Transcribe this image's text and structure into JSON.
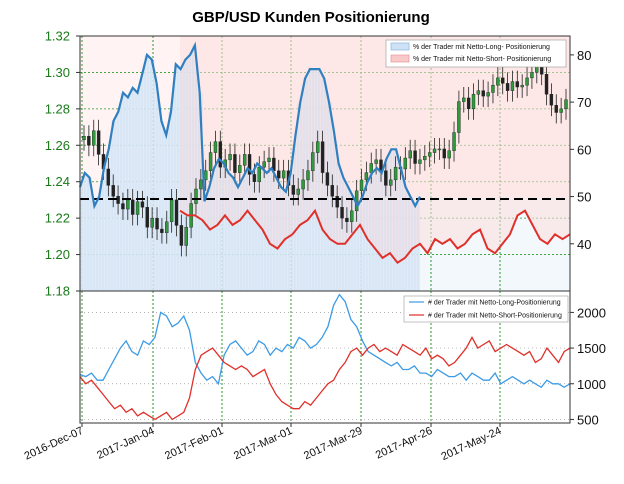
{
  "chart_data": [
    {
      "type": "line",
      "title": "GBP/USD Kunden Positionierung",
      "left_axis": {
        "ticks": [
          "1.18",
          "1.20",
          "1.22",
          "1.24",
          "1.26",
          "1.28",
          "1.30",
          "1.32"
        ],
        "range": [
          1.18,
          1.32
        ],
        "color": "#1a7a1a"
      },
      "right_axis": {
        "ticks": [
          "40",
          "50",
          "60",
          "70",
          "80"
        ],
        "range": [
          30,
          84
        ]
      },
      "reference_line": 50,
      "legend_placement": "top-right",
      "series": [
        {
          "name": "% der Trader mit Netto-Long- Positionierung",
          "color": "#2f7fc1",
          "fill": "#dce9f7",
          "values": [
            52,
            55,
            54,
            48,
            50,
            56,
            60,
            66,
            68,
            72,
            71,
            73,
            72,
            76,
            80,
            79,
            74,
            66,
            63,
            68,
            78,
            77,
            79,
            80,
            82,
            72,
            49,
            52,
            56,
            58,
            57,
            55,
            54,
            52,
            54,
            56,
            55,
            57,
            56,
            55,
            56,
            54,
            52,
            51,
            55,
            63,
            70,
            75,
            77,
            77,
            77,
            75,
            70,
            64,
            57,
            54,
            52,
            50,
            48,
            50,
            53,
            55,
            56,
            55,
            58,
            60,
            60,
            56,
            52,
            50,
            48,
            50
          ]
        },
        {
          "name": "% der Trader mit Netto-Short- Positionierung",
          "color": "#e0302a",
          "fill": "#fbdcdc",
          "values": [
            47,
            46,
            46,
            45,
            43,
            44,
            46,
            44,
            45,
            47,
            45,
            43,
            40,
            39,
            41,
            42,
            44,
            45,
            47,
            43,
            41,
            40,
            40,
            42,
            44,
            41,
            39,
            37,
            38,
            36,
            37,
            39,
            40,
            38,
            41,
            40,
            41,
            39,
            40,
            42,
            43,
            39,
            38,
            40,
            42,
            46,
            47,
            44,
            41,
            40,
            42,
            41,
            42
          ]
        }
      ],
      "price": {
        "name": "GBP/USD",
        "color": "#1a1a1a",
        "close": [
          1.265,
          1.26,
          1.268,
          1.255,
          1.247,
          1.238,
          1.232,
          1.228,
          1.225,
          1.23,
          1.222,
          1.229,
          1.226,
          1.215,
          1.22,
          1.214,
          1.212,
          1.218,
          1.23,
          1.216,
          1.205,
          1.215,
          1.228,
          1.236,
          1.241,
          1.246,
          1.256,
          1.262,
          1.248,
          1.252,
          1.255,
          1.245,
          1.249,
          1.255,
          1.244,
          1.24,
          1.248,
          1.251,
          1.253,
          1.246,
          1.242,
          1.246,
          1.238,
          1.233,
          1.236,
          1.241,
          1.246,
          1.256,
          1.262,
          1.245,
          1.238,
          1.232,
          1.226,
          1.22,
          1.218,
          1.224,
          1.235,
          1.241,
          1.245,
          1.25,
          1.252,
          1.246,
          1.238,
          1.241,
          1.248,
          1.247,
          1.253,
          1.257,
          1.25,
          1.252,
          1.254,
          1.256,
          1.258,
          1.258,
          1.253,
          1.257,
          1.267,
          1.284,
          1.286,
          1.28,
          1.288,
          1.29,
          1.287,
          1.289,
          1.293,
          1.297,
          1.294,
          1.29,
          1.295,
          1.292,
          1.293,
          1.297,
          1.3,
          1.304,
          1.299,
          1.288,
          1.282,
          1.278,
          1.28,
          1.285
        ]
      },
      "x_ticks": [
        "2016-Dec-07",
        "2017-Jan-04",
        "2017-Feb-01",
        "2017-Mar-01",
        "2017-Mar-29",
        "2017-Apr-26",
        "2017-May-24"
      ]
    },
    {
      "type": "line",
      "right_axis": {
        "ticks": [
          "500",
          "1000",
          "1500",
          "2000"
        ],
        "range": [
          450,
          2300
        ]
      },
      "legend_placement": "top-right",
      "series": [
        {
          "name": "# der Trader mit Netto-Long-Positionierung",
          "color": "#3c9be6",
          "values": [
            1130,
            1100,
            1150,
            1050,
            1050,
            1200,
            1350,
            1500,
            1600,
            1450,
            1400,
            1600,
            1550,
            1650,
            2000,
            1950,
            1800,
            1850,
            1950,
            1750,
            1300,
            1150,
            1050,
            1100,
            1000,
            1400,
            1550,
            1600,
            1500,
            1400,
            1450,
            1600,
            1550,
            1400,
            1500,
            1450,
            1550,
            1500,
            1650,
            1600,
            1500,
            1550,
            1650,
            1800,
            2100,
            2250,
            2150,
            1900,
            1800,
            1600,
            1450,
            1400,
            1350,
            1300,
            1250,
            1300,
            1200,
            1200,
            1250,
            1150,
            1150,
            1100,
            1200,
            1150,
            1100,
            1100,
            1150,
            1050,
            1150,
            1100,
            1050,
            1050,
            1150,
            1000,
            1050,
            1100,
            1050,
            1000,
            1050,
            1000,
            950,
            1050,
            1000,
            1000,
            950,
            1000
          ]
        },
        {
          "name": "# der Trader mit Netto-Short-Positionierung",
          "color": "#e0302a",
          "values": [
            1100,
            1000,
            1050,
            950,
            850,
            750,
            650,
            700,
            600,
            650,
            550,
            600,
            550,
            500,
            550,
            600,
            500,
            550,
            600,
            800,
            1200,
            1400,
            1450,
            1500,
            1400,
            1300,
            1250,
            1200,
            1250,
            1200,
            1100,
            1150,
            1200,
            1000,
            850,
            750,
            700,
            650,
            650,
            750,
            700,
            800,
            900,
            1000,
            1050,
            1200,
            1300,
            1450,
            1500,
            1400,
            1500,
            1550,
            1450,
            1500,
            1450,
            1400,
            1550,
            1500,
            1450,
            1400,
            1500,
            1350,
            1400,
            1350,
            1250,
            1300,
            1400,
            1500,
            1650,
            1500,
            1550,
            1600,
            1450,
            1500,
            1550,
            1500,
            1450,
            1400,
            1450,
            1300,
            1350,
            1500,
            1400,
            1300,
            1450,
            1500
          ]
        }
      ],
      "x_ticks": [
        "2016-Dec-07",
        "2017-Jan-04",
        "2017-Feb-01",
        "2017-Mar-01",
        "2017-Mar-29",
        "2017-Apr-26",
        "2017-May-24"
      ]
    }
  ]
}
